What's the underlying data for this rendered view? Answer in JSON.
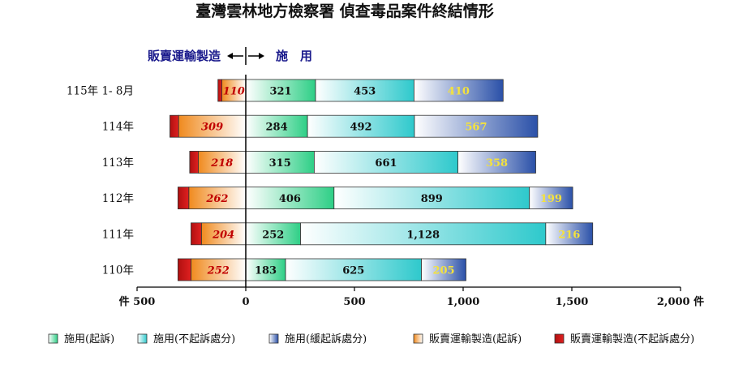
{
  "chart_data": {
    "type": "bar",
    "title": "臺灣雲林地方檢察署  偵查毒品案件終結情形",
    "direction_labels": {
      "left": "販賣運輸製造",
      "right": "施　用"
    },
    "categories": [
      "115年 1- 8月",
      "114年",
      "113年",
      "112年",
      "111年",
      "110年"
    ],
    "series": [
      {
        "name": "施用(起訴)",
        "side": "right",
        "values": [
          321,
          284,
          315,
          406,
          252,
          183
        ],
        "show_labels": true
      },
      {
        "name": "施用(不起訴處分)",
        "side": "right",
        "values": [
          453,
          492,
          661,
          899,
          1128,
          625
        ],
        "show_labels": true
      },
      {
        "name": "施用(緩起訴處分)",
        "side": "right",
        "values": [
          410,
          567,
          358,
          199,
          216,
          205
        ],
        "show_labels": true
      },
      {
        "name": "販賣運輸製造(起訴)",
        "side": "left",
        "values": [
          110,
          309,
          218,
          262,
          204,
          252
        ],
        "show_labels": true
      },
      {
        "name": "販賣運輸製造(不起訴處分)",
        "side": "left",
        "values": [
          18,
          40,
          40,
          50,
          48,
          60
        ],
        "show_labels": false
      }
    ],
    "colors": {
      "use_indict": "#2ecf86",
      "use_nonindict": "#2ec9cc",
      "use_deferred": "#2a50a8",
      "traffic_indict": "#f08a1e",
      "traffic_nonindict": "#b01010"
    },
    "x_ticks": [
      {
        "value": -500,
        "label": "件 500"
      },
      {
        "value": 0,
        "label": "0"
      },
      {
        "value": 500,
        "label": "500"
      },
      {
        "value": 1000,
        "label": "1,000"
      },
      {
        "value": 1500,
        "label": "1,500"
      },
      {
        "value": 2000,
        "label": "2,000 件"
      }
    ],
    "xlim": [
      -500,
      2000
    ],
    "legend_position": "bottom"
  }
}
